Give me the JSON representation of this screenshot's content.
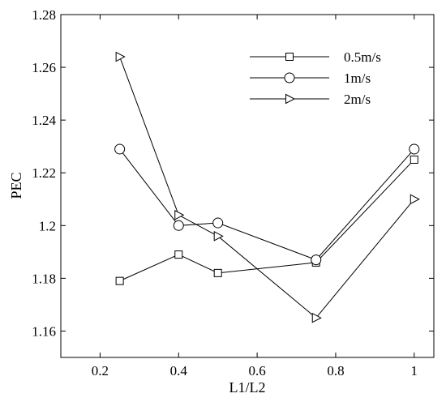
{
  "chart_data": {
    "type": "line",
    "title": "",
    "xlabel": "L1/L2",
    "ylabel": "PEC",
    "xlim": [
      0.1,
      1.05
    ],
    "ylim": [
      1.15,
      1.28
    ],
    "x_ticks": [
      0.2,
      0.4,
      0.6,
      0.8,
      1.0
    ],
    "x_tick_labels": [
      "0.2",
      "0.4",
      "0.6",
      "0.8",
      "1"
    ],
    "y_ticks": [
      1.16,
      1.18,
      1.2,
      1.22,
      1.24,
      1.26,
      1.28
    ],
    "y_tick_labels": [
      "1.16",
      "1.18",
      "1.2",
      "1.22",
      "1.24",
      "1.26",
      "1.28"
    ],
    "grid": false,
    "legend_position": "top-right",
    "series": [
      {
        "name": "0.5m/s",
        "marker": "square",
        "x": [
          0.25,
          0.4,
          0.5,
          0.75,
          1.0
        ],
        "y": [
          1.179,
          1.189,
          1.182,
          1.186,
          1.225
        ]
      },
      {
        "name": "1m/s",
        "marker": "circle",
        "x": [
          0.25,
          0.4,
          0.5,
          0.75,
          1.0
        ],
        "y": [
          1.229,
          1.2,
          1.201,
          1.187,
          1.229
        ]
      },
      {
        "name": "2m/s",
        "marker": "triangle-right",
        "x": [
          0.25,
          0.4,
          0.5,
          0.75,
          1.0
        ],
        "y": [
          1.264,
          1.204,
          1.196,
          1.165,
          1.21
        ]
      }
    ]
  }
}
